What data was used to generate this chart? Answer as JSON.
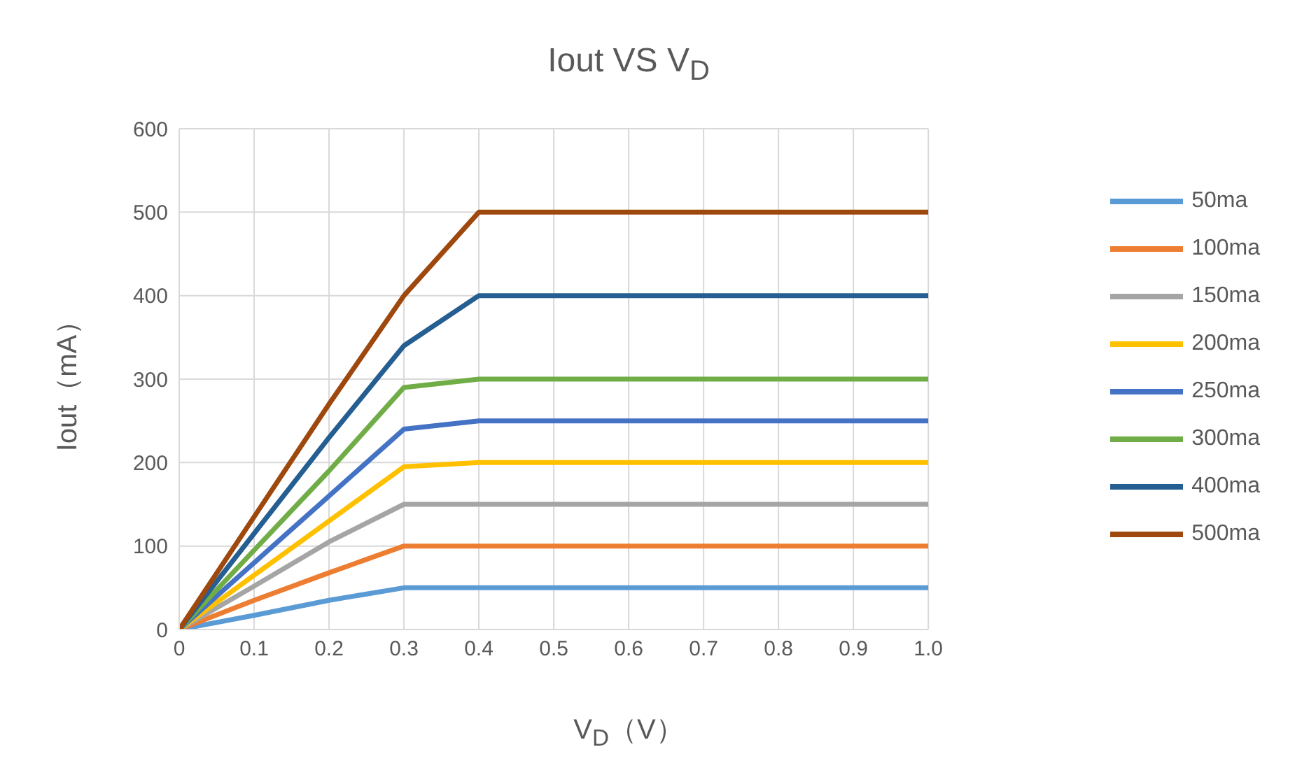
{
  "chart_data": {
    "type": "line",
    "title": "Iout VS V$_{D}$",
    "xlabel": "V$_{D}$（V）",
    "ylabel": "Iout（mA）",
    "x": [
      0,
      0.1,
      0.2,
      0.3,
      0.4,
      0.5,
      0.6,
      0.7,
      0.8,
      0.9,
      1.0
    ],
    "series": [
      {
        "name": "50ma",
        "color": "#5b9bd5",
        "values": [
          0,
          17,
          35,
          50,
          50,
          50,
          50,
          50,
          50,
          50,
          50
        ]
      },
      {
        "name": "100ma",
        "color": "#ed7d31",
        "values": [
          0,
          35,
          68,
          100,
          100,
          100,
          100,
          100,
          100,
          100,
          100
        ]
      },
      {
        "name": "150ma",
        "color": "#a5a5a5",
        "values": [
          0,
          52,
          105,
          150,
          150,
          150,
          150,
          150,
          150,
          150,
          150
        ]
      },
      {
        "name": "200ma",
        "color": "#ffc000",
        "values": [
          0,
          65,
          130,
          195,
          200,
          200,
          200,
          200,
          200,
          200,
          200
        ]
      },
      {
        "name": "250ma",
        "color": "#4472c4",
        "values": [
          0,
          80,
          160,
          240,
          250,
          250,
          250,
          250,
          250,
          250,
          250
        ]
      },
      {
        "name": "300ma",
        "color": "#70ad47",
        "values": [
          0,
          95,
          190,
          290,
          300,
          300,
          300,
          300,
          300,
          300,
          300
        ]
      },
      {
        "name": "400ma",
        "color": "#255e91",
        "values": [
          0,
          115,
          230,
          340,
          400,
          400,
          400,
          400,
          400,
          400,
          400
        ]
      },
      {
        "name": "500ma",
        "color": "#9e480e",
        "values": [
          0,
          135,
          270,
          400,
          500,
          500,
          500,
          500,
          500,
          500,
          500
        ]
      }
    ],
    "xlim": [
      0,
      1
    ],
    "xticks": [
      0,
      0.1,
      0.2,
      0.3,
      0.4,
      0.5,
      0.6,
      0.7,
      0.8,
      0.9,
      {
        "value": 1,
        "label": "1.0"
      }
    ],
    "ylim": [
      0,
      600
    ],
    "yticks": [
      0,
      100,
      200,
      300,
      400,
      500,
      600
    ],
    "grid": true,
    "legend": "right",
    "marker": "none",
    "line_style": "solid"
  }
}
